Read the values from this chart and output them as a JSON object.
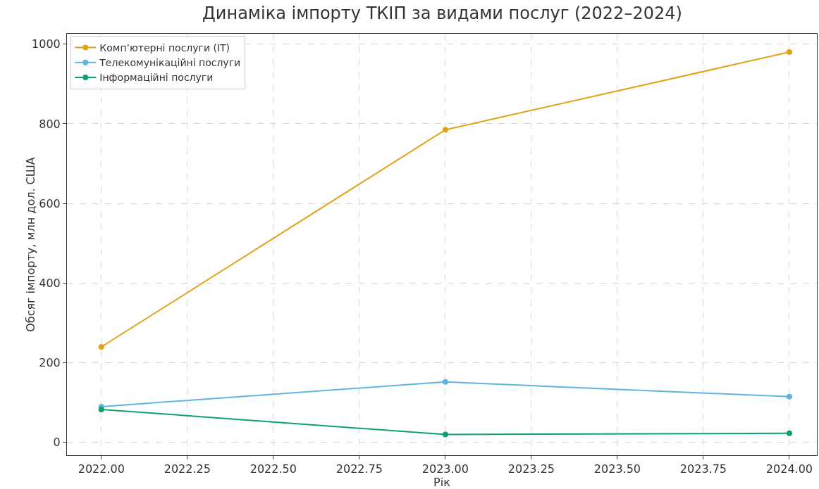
{
  "chart_data": {
    "type": "line",
    "title": "Динаміка імпорту ТКІП за видами послуг (2022–2024)",
    "xlabel": "Рік",
    "ylabel": "Обсяг імпорту, млн дол. США",
    "x": [
      2022,
      2023,
      2024
    ],
    "series": [
      {
        "name": "Комп’ютерні послуги (IT)",
        "color": "#e1a21a",
        "values": [
          240,
          785,
          980
        ]
      },
      {
        "name": "Телекомунікаційні послуги",
        "color": "#5fb4e0",
        "values": [
          90,
          152,
          115
        ]
      },
      {
        "name": "Інформаційні послуги",
        "color": "#119e73",
        "values": [
          83,
          20,
          23
        ]
      }
    ],
    "xlim": [
      2021.9,
      2024.08
    ],
    "xticks": [
      {
        "value": 2022,
        "label": "2022.00"
      },
      {
        "value": 2022.25,
        "label": "2022.25"
      },
      {
        "value": 2022.5,
        "label": "2022.50"
      },
      {
        "value": 2022.75,
        "label": "2022.75"
      },
      {
        "value": 2023,
        "label": "2023.00"
      },
      {
        "value": 2023.25,
        "label": "2023.25"
      },
      {
        "value": 2023.5,
        "label": "2023.50"
      },
      {
        "value": 2023.75,
        "label": "2023.75"
      },
      {
        "value": 2024,
        "label": "2024.00"
      }
    ],
    "ylim": [
      -32,
      1026
    ],
    "yticks": [
      0,
      200,
      400,
      600,
      800,
      1000
    ],
    "grid": true,
    "legend": "top left",
    "marker": "circle",
    "line_style": "solid"
  }
}
